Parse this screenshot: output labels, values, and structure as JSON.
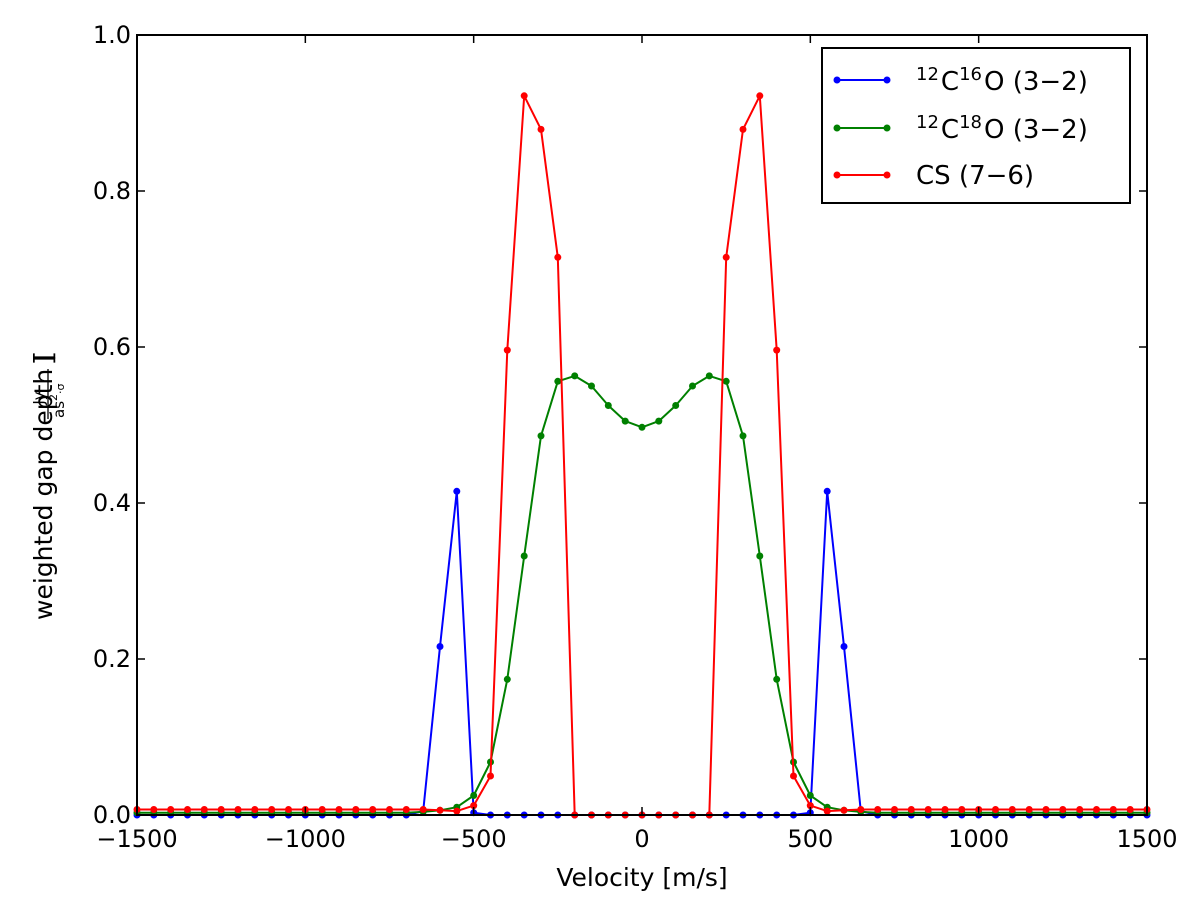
{
  "chart_data": {
    "type": "line",
    "xlabel": "Velocity [m/s]",
    "ylabel_main": "weighted gap depth [",
    "ylabel_num": "Jy",
    "ylabel_den": "as",
    "ylabel_den_sup": "2",
    "ylabel_den_tail": "·σ",
    "ylabel_close": "]",
    "xlim": [
      -1500,
      1500
    ],
    "ylim": [
      0.0,
      1.0
    ],
    "xticks": [
      "−1500",
      "−1000",
      "−500",
      "0",
      "500",
      "1000",
      "1500"
    ],
    "xtick_values": [
      -1500,
      -1000,
      -500,
      0,
      500,
      1000,
      1500
    ],
    "yticks": [
      "0.0",
      "0.2",
      "0.4",
      "0.6",
      "0.8",
      "1.0"
    ],
    "ytick_values": [
      0.0,
      0.2,
      0.4,
      0.6,
      0.8,
      1.0
    ],
    "grid": false,
    "legend_position": "top-right",
    "legend": [
      {
        "pre": "12",
        "el1": "C",
        "sup": "16",
        "el2": "O (3−2)"
      },
      {
        "pre": "12",
        "el1": "C",
        "sup": "18",
        "el2": "O (3−2)"
      },
      {
        "pre": "",
        "el1": "CS (7−6)",
        "sup": "",
        "el2": ""
      }
    ],
    "x": [
      -1500,
      -1450,
      -1400,
      -1350,
      -1300,
      -1250,
      -1200,
      -1150,
      -1100,
      -1050,
      -1000,
      -950,
      -900,
      -850,
      -800,
      -750,
      -700,
      -650,
      -600,
      -550,
      -500,
      -450,
      -400,
      -350,
      -300,
      -250,
      -200,
      -150,
      -100,
      -50,
      0,
      50,
      100,
      150,
      200,
      250,
      300,
      350,
      400,
      450,
      500,
      550,
      600,
      650,
      700,
      750,
      800,
      850,
      900,
      950,
      1000,
      1050,
      1100,
      1150,
      1200,
      1250,
      1300,
      1350,
      1400,
      1450,
      1500
    ],
    "series": [
      {
        "color": "#0000ff",
        "values": [
          0,
          0,
          0,
          0,
          0,
          0,
          0,
          0,
          0,
          0,
          0,
          0,
          0,
          0,
          0,
          0,
          0,
          0.005,
          0.216,
          0.415,
          0.003,
          0,
          0,
          0,
          0,
          0,
          0,
          0,
          0,
          0,
          0,
          0,
          0,
          0,
          0,
          0,
          0,
          0,
          0,
          0,
          0.003,
          0.415,
          0.216,
          0.005,
          0,
          0,
          0,
          0,
          0,
          0,
          0,
          0,
          0,
          0,
          0,
          0,
          0,
          0,
          0,
          0,
          0
        ]
      },
      {
        "color": "#008000",
        "values": [
          0.003,
          0.003,
          0.003,
          0.003,
          0.003,
          0.003,
          0.003,
          0.003,
          0.003,
          0.003,
          0.003,
          0.003,
          0.003,
          0.003,
          0.003,
          0.003,
          0.003,
          0.004,
          0.006,
          0.01,
          0.025,
          0.068,
          0.174,
          0.332,
          0.486,
          0.556,
          0.563,
          0.55,
          0.525,
          0.505,
          0.497,
          0.505,
          0.525,
          0.55,
          0.563,
          0.556,
          0.486,
          0.332,
          0.174,
          0.068,
          0.025,
          0.01,
          0.006,
          0.004,
          0.003,
          0.003,
          0.003,
          0.003,
          0.003,
          0.003,
          0.003,
          0.003,
          0.003,
          0.003,
          0.003,
          0.003,
          0.003,
          0.003,
          0.003,
          0.003,
          0.003
        ]
      },
      {
        "color": "#ff0000",
        "values": [
          0.007,
          0.007,
          0.007,
          0.007,
          0.007,
          0.007,
          0.007,
          0.007,
          0.007,
          0.007,
          0.007,
          0.007,
          0.007,
          0.007,
          0.007,
          0.007,
          0.007,
          0.007,
          0.006,
          0.005,
          0.012,
          0.05,
          0.596,
          0.922,
          0.879,
          0.715,
          0,
          0,
          0,
          0,
          0,
          0,
          0,
          0,
          0,
          0.715,
          0.879,
          0.922,
          0.596,
          0.05,
          0.012,
          0.005,
          0.006,
          0.007,
          0.007,
          0.007,
          0.007,
          0.007,
          0.007,
          0.007,
          0.007,
          0.007,
          0.007,
          0.007,
          0.007,
          0.007,
          0.007,
          0.007,
          0.007,
          0.007,
          0.007
        ]
      }
    ]
  }
}
